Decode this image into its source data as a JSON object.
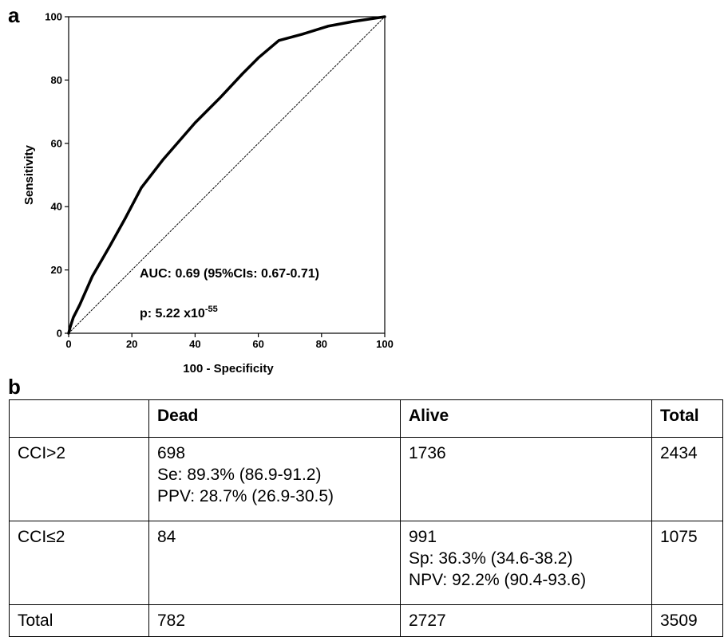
{
  "panel_a_label": "a",
  "panel_b_label": "b",
  "chart_data": {
    "type": "line",
    "xlabel": "100 - Specificity",
    "ylabel": "Sensitivity",
    "xlim": [
      0,
      100
    ],
    "ylim": [
      0,
      100
    ],
    "xticks": [
      "0",
      "20",
      "40",
      "60",
      "80",
      "100"
    ],
    "yticks": [
      "0",
      "20",
      "40",
      "60",
      "80",
      "100"
    ],
    "grid": false,
    "series": [
      {
        "style": "solid",
        "x": [
          0,
          0.5,
          1.5,
          3.5,
          7.5,
          13,
          18,
          23,
          30,
          40,
          48,
          55,
          60,
          66.5,
          74,
          82,
          90,
          100
        ],
        "y": [
          0,
          2,
          5,
          9,
          18,
          27.5,
          36.5,
          46,
          55,
          66.5,
          74.5,
          82,
          87,
          92.5,
          94.5,
          97,
          98.5,
          100
        ]
      },
      {
        "style": "dotted",
        "x": [
          0,
          100
        ],
        "y": [
          0,
          100
        ]
      }
    ],
    "annotations": {
      "auc": "AUC: 0.69 (95%CIs: 0.67-0.71)",
      "p_prefix": "p: 5.22 x10",
      "p_exponent": "-55"
    }
  },
  "table": {
    "headers": [
      "",
      "Dead",
      "Alive",
      "Total"
    ],
    "rows": [
      {
        "label": "CCI>2",
        "dead": [
          "698",
          "Se: 89.3% (86.9-91.2)",
          "PPV: 28.7% (26.9-30.5)"
        ],
        "alive": [
          "1736"
        ],
        "total": [
          "2434"
        ]
      },
      {
        "label": "CCI≤2",
        "dead": [
          "84"
        ],
        "alive": [
          "991",
          "Sp: 36.3% (34.6-38.2)",
          "NPV: 92.2% (90.4-93.6)"
        ],
        "total": [
          "1075"
        ]
      },
      {
        "label": "Total",
        "dead": [
          "782"
        ],
        "alive": [
          "2727"
        ],
        "total": [
          "3509"
        ]
      }
    ]
  }
}
